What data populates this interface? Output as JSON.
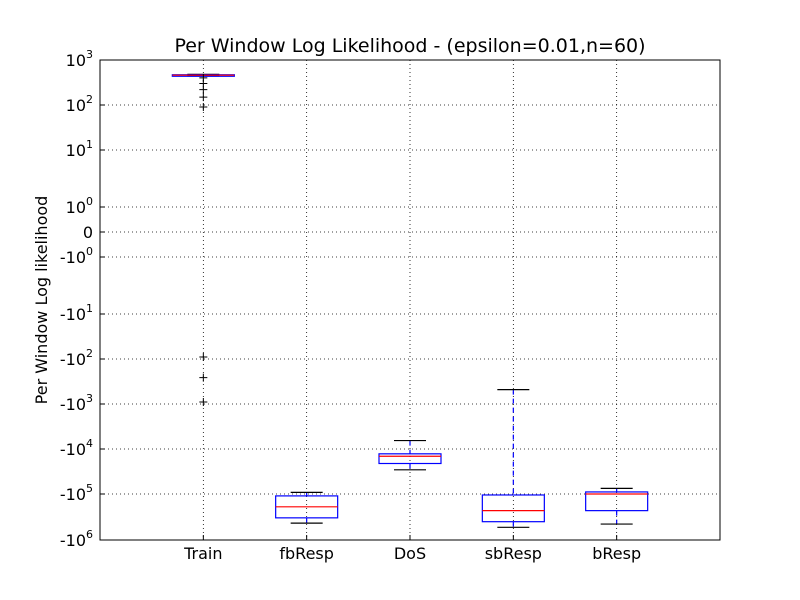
{
  "chart_data": {
    "type": "box",
    "title": "Per Window Log Likelihood - (epsilon=0.01,n=60)",
    "xlabel": "",
    "ylabel": "Per Window Log likelihood",
    "yscale": "symlog",
    "ylim": [
      -1000000,
      1000
    ],
    "grid": true,
    "categories": [
      "Train",
      "fbResp",
      "DoS",
      "sbResp",
      "bResp"
    ],
    "y_ticks": [
      {
        "value": 1000,
        "base": "10",
        "exp": "3",
        "sign": ""
      },
      {
        "value": 100,
        "base": "10",
        "exp": "2",
        "sign": ""
      },
      {
        "value": 10,
        "base": "10",
        "exp": "1",
        "sign": ""
      },
      {
        "value": 1,
        "base": "10",
        "exp": "0",
        "sign": ""
      },
      {
        "value": 0,
        "base": "0",
        "exp": "",
        "sign": ""
      },
      {
        "value": -1,
        "base": "10",
        "exp": "0",
        "sign": "-"
      },
      {
        "value": -10,
        "base": "10",
        "exp": "1",
        "sign": "-"
      },
      {
        "value": -100,
        "base": "10",
        "exp": "2",
        "sign": "-"
      },
      {
        "value": -1000,
        "base": "10",
        "exp": "3",
        "sign": "-"
      },
      {
        "value": -10000,
        "base": "10",
        "exp": "4",
        "sign": "-"
      },
      {
        "value": -100000,
        "base": "10",
        "exp": "5",
        "sign": "-"
      },
      {
        "value": -1000000,
        "base": "10",
        "exp": "6",
        "sign": "-"
      }
    ],
    "boxes": [
      {
        "label": "Train",
        "whisker_low": 440,
        "q1": 450,
        "median": 460,
        "q3": 470,
        "whisker_high": 480,
        "outliers": [
          400,
          300,
          220,
          150,
          90,
          -90,
          -260,
          -900
        ]
      },
      {
        "label": "fbResp",
        "whisker_low": -430000,
        "q1": -330000,
        "median": -190000,
        "q3": -110000,
        "whisker_high": -92000,
        "outliers": []
      },
      {
        "label": "DoS",
        "whisker_low": -29000,
        "q1": -21000,
        "median": -14500,
        "q3": -12800,
        "whisker_high": -6500,
        "outliers": []
      },
      {
        "label": "sbResp",
        "whisker_low": -530000,
        "q1": -400000,
        "median": -230000,
        "q3": -105000,
        "whisker_high": -480,
        "outliers": []
      },
      {
        "label": "bResp",
        "whisker_low": -450000,
        "q1": -230000,
        "median": -100000,
        "q3": -90000,
        "whisker_high": -75000,
        "outliers": []
      }
    ],
    "colors": {
      "box": "#0000ff",
      "median": "#ff0000",
      "cap": "#000000",
      "flier": "#000000"
    }
  }
}
